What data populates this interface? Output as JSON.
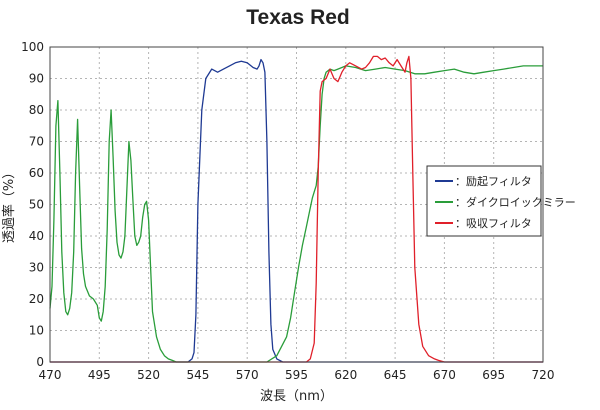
{
  "chart_data": {
    "type": "line",
    "title": "Texas Red",
    "xlabel": "波長（nm）",
    "ylabel": "透過率（%）",
    "xlim": [
      470,
      720
    ],
    "ylim": [
      0,
      100
    ],
    "xticks": [
      470,
      495,
      520,
      545,
      570,
      595,
      620,
      645,
      670,
      695,
      720
    ],
    "yticks": [
      0,
      10,
      20,
      30,
      40,
      50,
      60,
      70,
      80,
      90,
      100
    ],
    "grid": true,
    "legend_position": "right",
    "series": [
      {
        "name": "：励起フィルタ",
        "color": "#1f3a93",
        "x": [
          470,
          530,
          540,
          542,
          543,
          544,
          545,
          547,
          549,
          552,
          555,
          558,
          561,
          564,
          567,
          570,
          573,
          575,
          576,
          577,
          578,
          579,
          580,
          581,
          582,
          583,
          585,
          588,
          592,
          720
        ],
        "y": [
          0,
          0,
          0,
          1,
          3,
          15,
          50,
          80,
          90,
          93,
          92,
          93,
          94,
          95,
          95.5,
          95,
          93.5,
          93,
          94,
          96,
          95,
          92,
          70,
          35,
          12,
          4,
          1,
          0,
          0,
          0
        ]
      },
      {
        "name": "：ダイクロイックミラー",
        "color": "#2a9d3a",
        "x": [
          470,
          471,
          472,
          473,
          474,
          475,
          476,
          477,
          478,
          479,
          480,
          481,
          482,
          483,
          484,
          485,
          486,
          487,
          488,
          490,
          492,
          494,
          495,
          496,
          497,
          498,
          499,
          500,
          501,
          502,
          503,
          504,
          505,
          506,
          507,
          508,
          509,
          510,
          511,
          512,
          513,
          514,
          515,
          516,
          517,
          518,
          519,
          520,
          521,
          522,
          523,
          524,
          526,
          528,
          530,
          532,
          534,
          540,
          580,
          585,
          590,
          592,
          594,
          596,
          598,
          600,
          602,
          603,
          604,
          605,
          606,
          607,
          608,
          609,
          610,
          612,
          614,
          616,
          618,
          620,
          625,
          630,
          635,
          640,
          645,
          650,
          655,
          660,
          665,
          670,
          675,
          680,
          685,
          690,
          695,
          700,
          705,
          710,
          715,
          720
        ],
        "y": [
          17,
          24,
          45,
          75,
          83,
          60,
          35,
          22,
          16,
          15,
          17,
          22,
          35,
          60,
          77,
          56,
          36,
          28,
          24,
          21,
          20,
          18,
          14,
          13,
          16,
          24,
          42,
          70,
          80,
          65,
          48,
          38,
          34,
          33,
          35,
          40,
          55,
          70,
          64,
          52,
          40,
          37,
          38,
          40,
          46,
          50,
          51,
          45,
          30,
          16,
          12,
          8,
          4,
          2,
          1,
          0.5,
          0,
          0,
          0,
          2,
          8,
          14,
          22,
          30,
          37,
          43,
          49,
          52,
          54,
          56,
          62,
          75,
          85,
          90,
          92,
          93,
          92.5,
          93,
          93.5,
          94,
          93.5,
          92.5,
          93,
          93.5,
          93,
          92.5,
          91.5,
          91.5,
          92,
          92.5,
          93,
          92,
          91.5,
          92,
          92.5,
          93,
          93.5,
          94,
          94,
          94
        ]
      },
      {
        "name": "：吸収フィルタ",
        "color": "#e0202a",
        "x": [
          470,
          600,
          602,
          604,
          605,
          606,
          607,
          608,
          610,
          612,
          614,
          616,
          618,
          620,
          622,
          625,
          628,
          630,
          632,
          634,
          636,
          638,
          640,
          642,
          644,
          646,
          648,
          650,
          651,
          652,
          653,
          654,
          655,
          657,
          659,
          662,
          665,
          667,
          670,
          720
        ],
        "y": [
          0,
          0,
          1,
          6,
          25,
          60,
          86,
          89,
          90,
          93,
          90,
          89,
          92,
          94,
          95,
          94,
          93,
          93.5,
          95,
          97,
          97,
          96,
          96.5,
          95,
          94,
          96,
          94,
          92,
          95,
          97,
          90,
          60,
          30,
          12,
          5,
          2,
          1,
          0.5,
          0,
          0
        ]
      }
    ]
  }
}
